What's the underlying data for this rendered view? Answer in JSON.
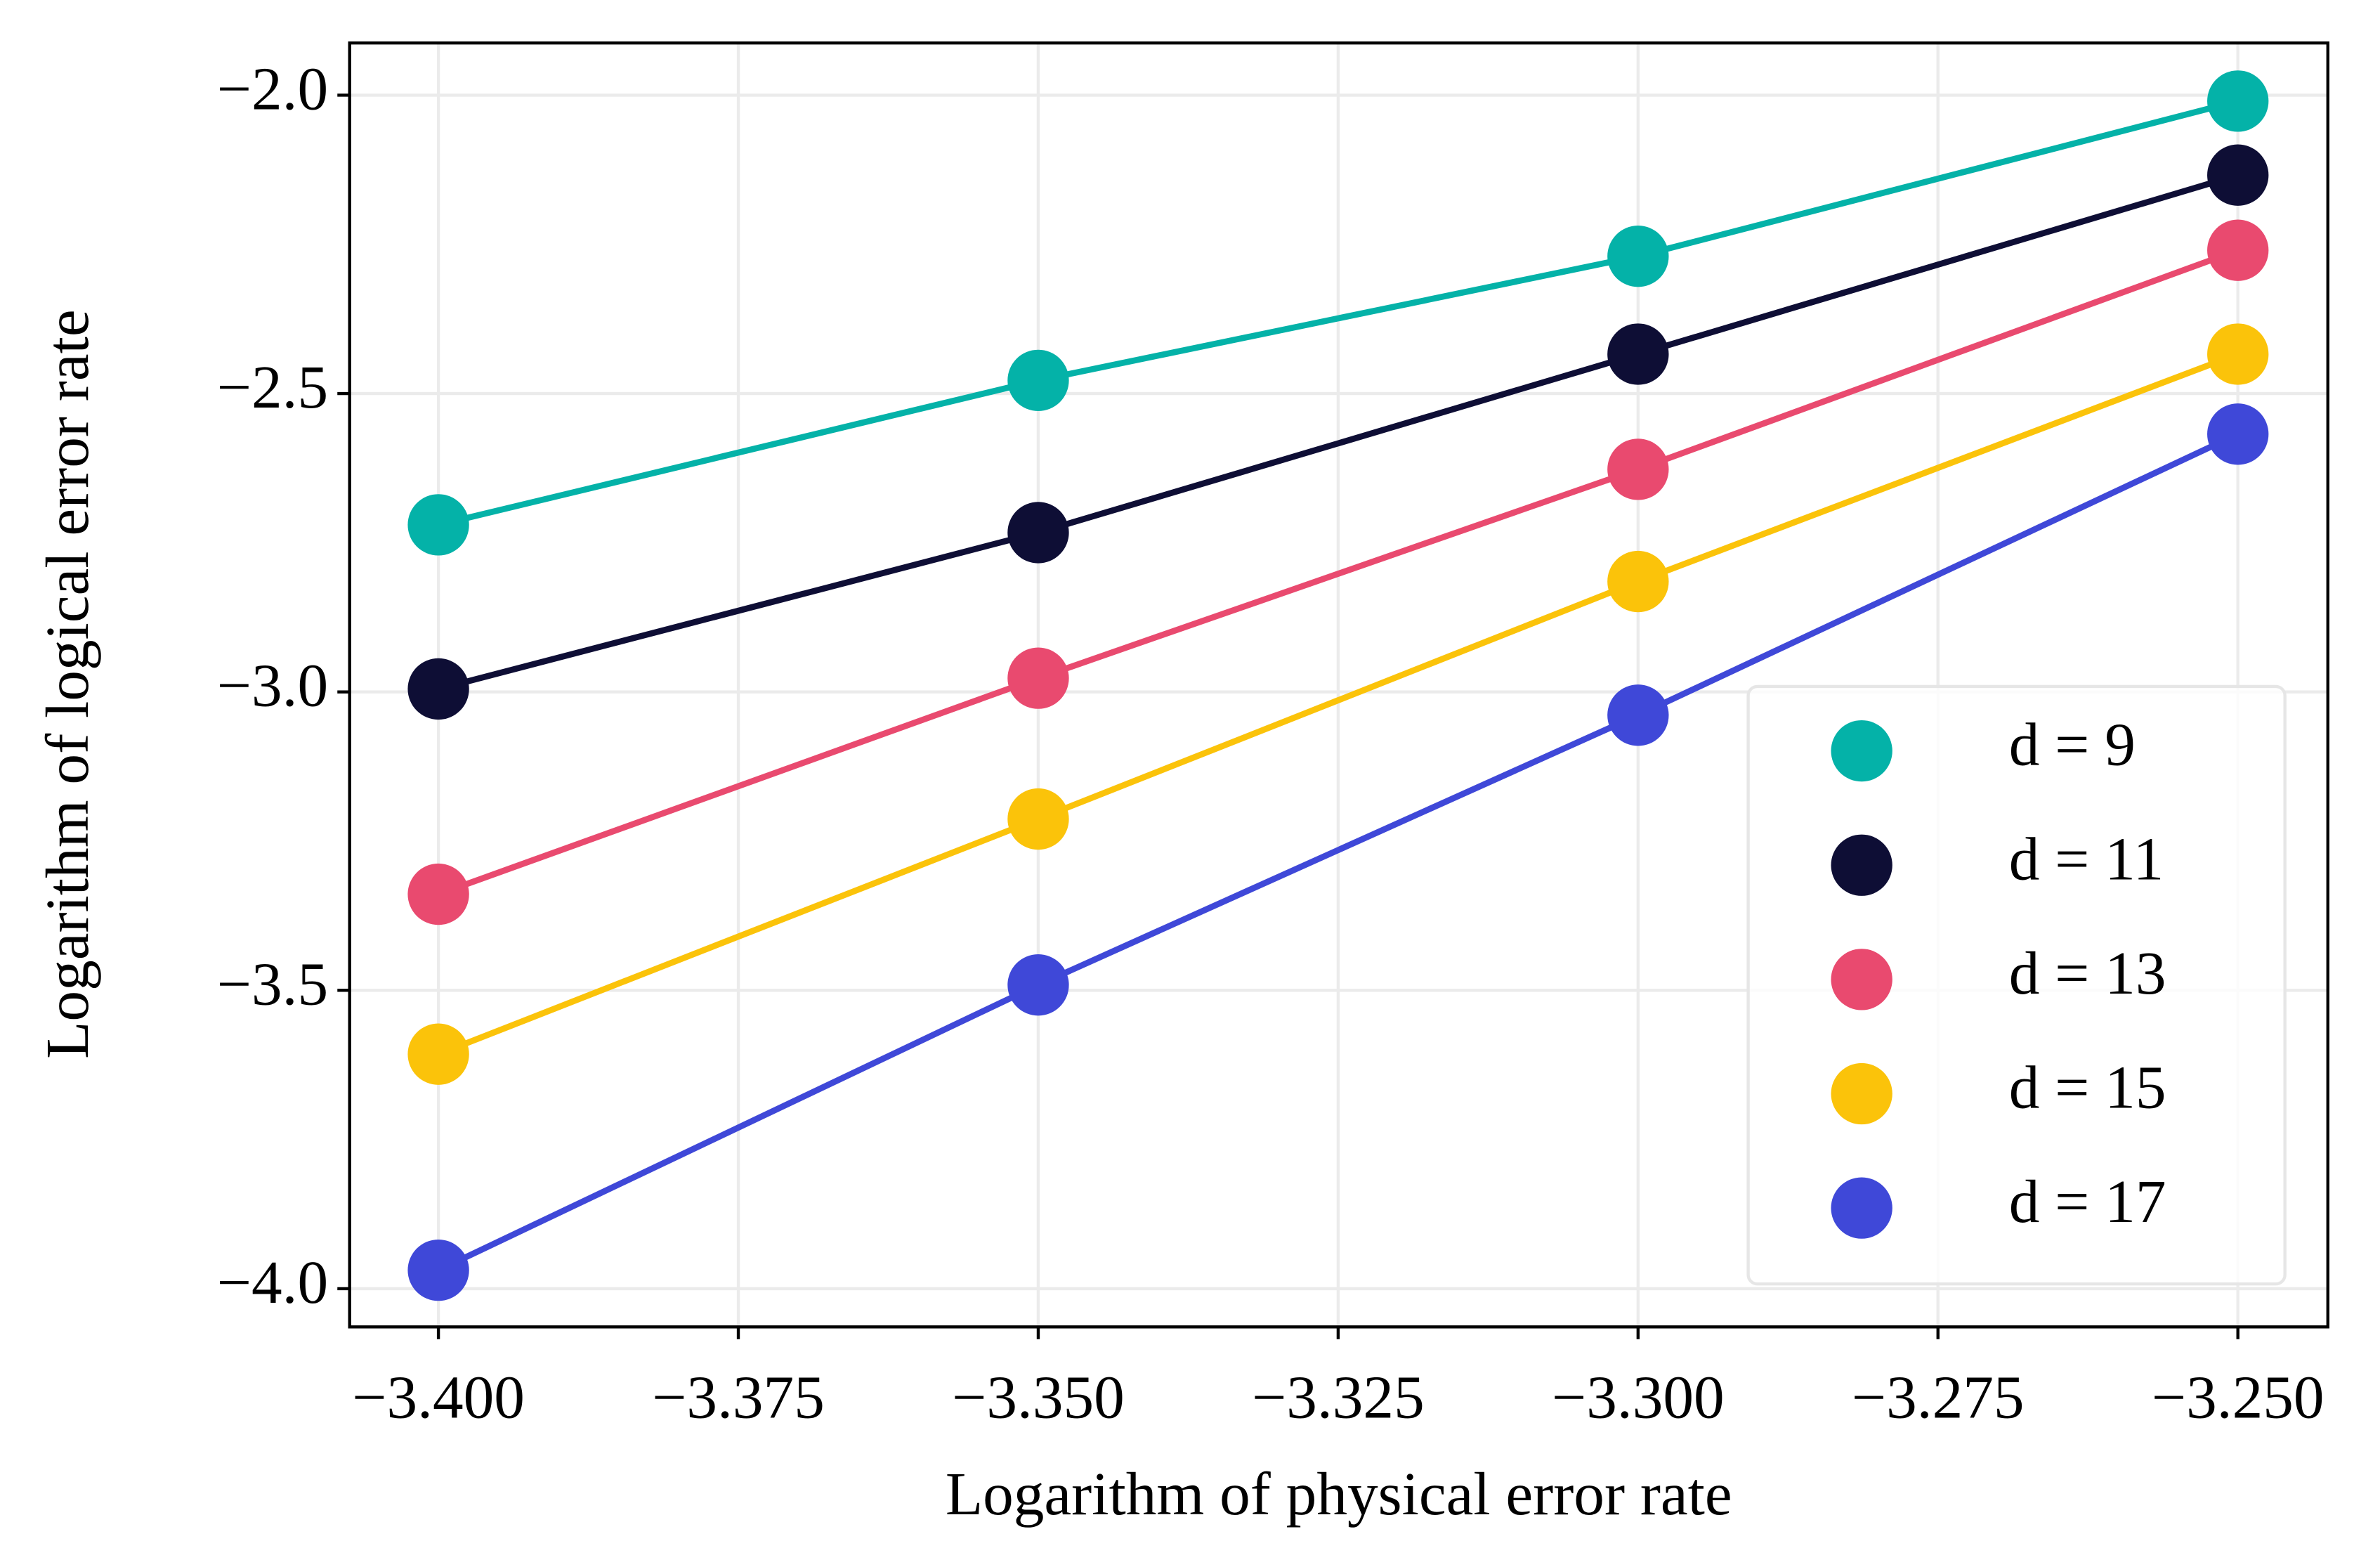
{
  "chart_data": {
    "type": "line",
    "xlabel": "Logarithm of physical error rate",
    "ylabel": "Logarithm of logical error rate",
    "x": [
      -3.4,
      -3.35,
      -3.3,
      -3.25
    ],
    "series": [
      {
        "name": "d = 9",
        "color": "#04b2a8",
        "values": [
          -2.72,
          -2.478,
          -2.27,
          -2.01
        ]
      },
      {
        "name": "d = 11",
        "color": "#0e0e35",
        "values": [
          -2.995,
          -2.733,
          -2.434,
          -2.134
        ]
      },
      {
        "name": "d = 13",
        "color": "#e94a6f",
        "values": [
          -3.339,
          -2.977,
          -2.627,
          -2.26
        ]
      },
      {
        "name": "d = 15",
        "color": "#fbc30a",
        "values": [
          -3.607,
          -3.213,
          -2.815,
          -2.434
        ]
      },
      {
        "name": "d = 17",
        "color": "#3f48d8",
        "values": [
          -3.969,
          -3.491,
          -3.039,
          -2.568
        ]
      }
    ],
    "xlim": [
      -3.4074,
      -3.2425
    ],
    "ylim": [
      -4.064,
      -1.9126
    ],
    "xticks": [
      {
        "value": -3.4,
        "label": "−3.400"
      },
      {
        "value": -3.375,
        "label": "−3.375"
      },
      {
        "value": -3.35,
        "label": "−3.350"
      },
      {
        "value": -3.325,
        "label": "−3.325"
      },
      {
        "value": -3.3,
        "label": "−3.300"
      },
      {
        "value": -3.275,
        "label": "−3.275"
      },
      {
        "value": -3.25,
        "label": "−3.250"
      }
    ],
    "yticks": [
      {
        "value": -2.0,
        "label": "−2.0"
      },
      {
        "value": -2.5,
        "label": "−2.5"
      },
      {
        "value": -3.0,
        "label": "−3.0"
      },
      {
        "value": -3.5,
        "label": "−3.5"
      },
      {
        "value": -4.0,
        "label": "−4.0"
      }
    ],
    "grid": true,
    "legend": "lower right"
  }
}
